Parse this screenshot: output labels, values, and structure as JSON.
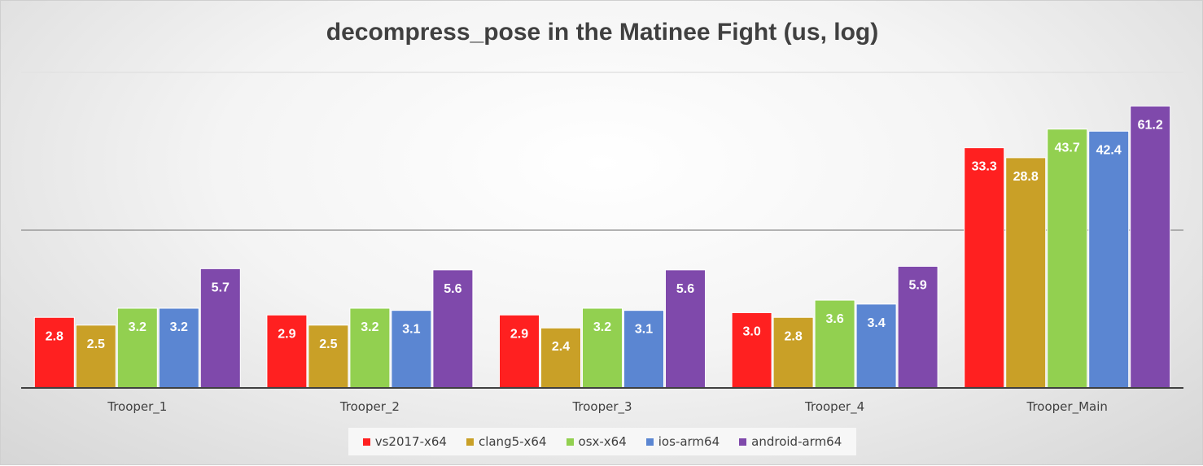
{
  "chart_data": {
    "type": "bar",
    "title": "decompress_pose in the Matinee Fight (us, log)",
    "xlabel": "",
    "ylabel": "",
    "yscale": "log",
    "ylim": [
      1,
      100
    ],
    "grid": true,
    "legend_position": "bottom",
    "categories": [
      "Trooper_1",
      "Trooper_2",
      "Trooper_3",
      "Trooper_4",
      "Trooper_Main"
    ],
    "series": [
      {
        "name": "vs2017-x64",
        "color": "#ff2020",
        "values": [
          2.8,
          2.9,
          2.9,
          3.0,
          33.3
        ],
        "labels": [
          "2.8",
          "2.9",
          "2.9",
          "3.0",
          "33.3"
        ]
      },
      {
        "name": "clang5-x64",
        "color": "#c9a027",
        "values": [
          2.5,
          2.5,
          2.4,
          2.8,
          28.8
        ],
        "labels": [
          "2.5",
          "2.5",
          "2.4",
          "2.8",
          "28.8"
        ]
      },
      {
        "name": "osx-x64",
        "color": "#92d050",
        "values": [
          3.2,
          3.2,
          3.2,
          3.6,
          43.7
        ],
        "labels": [
          "3.2",
          "3.2",
          "3.2",
          "3.6",
          "43.7"
        ]
      },
      {
        "name": "ios-arm64",
        "color": "#5b86d2",
        "values": [
          3.2,
          3.1,
          3.1,
          3.4,
          42.4
        ],
        "labels": [
          "3.2",
          "3.1",
          "3.1",
          "3.4",
          "42.4"
        ]
      },
      {
        "name": "android-arm64",
        "color": "#7f49ab",
        "values": [
          5.7,
          5.6,
          5.6,
          5.9,
          61.2
        ],
        "labels": [
          "5.7",
          "5.6",
          "5.6",
          "5.9",
          "61.2"
        ]
      }
    ]
  }
}
